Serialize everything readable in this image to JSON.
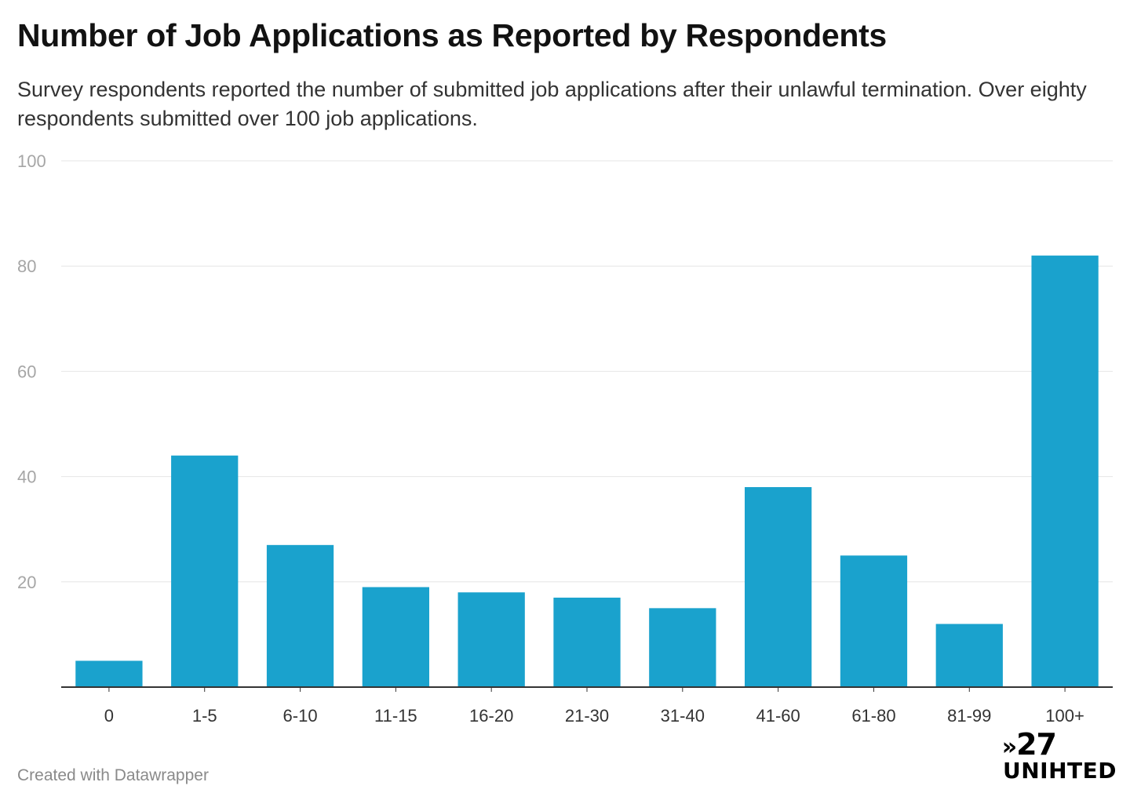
{
  "title": "Number of Job Applications as Reported by Respondents",
  "subtitle": "Survey respondents reported the number of submitted job applications after their unlawful termination. Over eighty respondents submitted over 100 job applications.",
  "footer": "Created with Datawrapper",
  "logo": {
    "top": "27",
    "chevron": "»",
    "bottom": "UNIHTED"
  },
  "chart_data": {
    "type": "bar",
    "title": "Number of Job Applications as Reported by Respondents",
    "categories": [
      "0",
      "1-5",
      "6-10",
      "11-15",
      "16-20",
      "21-30",
      "31-40",
      "41-60",
      "61-80",
      "81-99",
      "100+"
    ],
    "values": [
      5,
      44,
      27,
      19,
      18,
      17,
      15,
      38,
      25,
      12,
      82
    ],
    "ylim": [
      0,
      100
    ],
    "yticks": [
      20,
      40,
      60,
      80,
      100
    ],
    "grid": true,
    "bar_color": "#1aa2cd"
  }
}
